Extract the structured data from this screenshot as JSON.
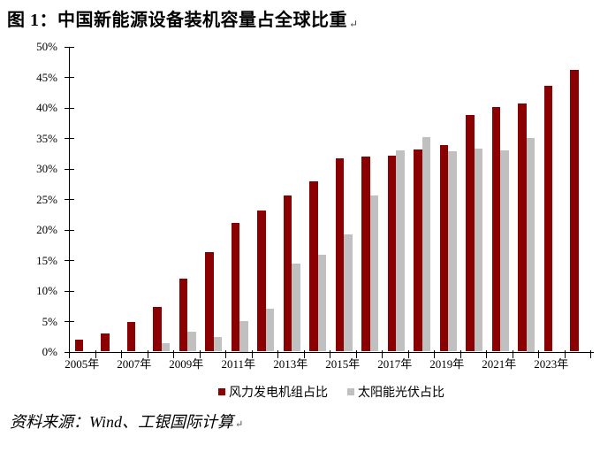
{
  "title": "图 1：中国新能源设备装机容量占全球比重",
  "title_mark": "↵",
  "source": "资料来源：Wind、工银国际计算",
  "source_mark": "↵",
  "colors": {
    "wind_red": "#8B0000",
    "solar_gray": "#C0C0C0",
    "axis": "#000000",
    "background": "#FFFFFF"
  },
  "chart_data": {
    "type": "bar",
    "title": "中国新能源设备装机容量占全球比重",
    "categories": [
      "2005",
      "2006",
      "2007",
      "2008",
      "2009",
      "2010",
      "2011",
      "2012",
      "2013",
      "2014",
      "2015",
      "2016",
      "2017",
      "2018",
      "2019",
      "2020",
      "2021",
      "2022",
      "2023",
      "2024"
    ],
    "series": [
      {
        "name": "风力发电机组占比",
        "color": "#8B0000",
        "values": [
          2.0,
          3.0,
          4.8,
          7.3,
          11.9,
          16.3,
          21.1,
          23.1,
          25.6,
          27.9,
          31.6,
          32.0,
          32.1,
          33.1,
          33.8,
          38.7,
          40.1,
          40.7,
          43.6,
          46.2
        ]
      },
      {
        "name": "太阳能光伏占比",
        "color": "#C0C0C0",
        "values": [
          0,
          0,
          0,
          1.4,
          3.2,
          2.4,
          5.0,
          7.0,
          14.4,
          15.8,
          19.2,
          25.6,
          32.9,
          35.2,
          32.8,
          33.2,
          33.0,
          35.0,
          null,
          null
        ]
      }
    ],
    "ylim": [
      0,
      50
    ],
    "ytick_step": 5,
    "ytick_labels": [
      "0%",
      "5%",
      "10%",
      "15%",
      "20%",
      "25%",
      "30%",
      "35%",
      "40%",
      "45%",
      "50%"
    ],
    "xtick_labels": [
      "2005年",
      "2007年",
      "2009年",
      "2011年",
      "2013年",
      "2015年",
      "2017年",
      "2019年",
      "2021年",
      "2023年"
    ],
    "grid": false,
    "legend_position": "bottom"
  }
}
